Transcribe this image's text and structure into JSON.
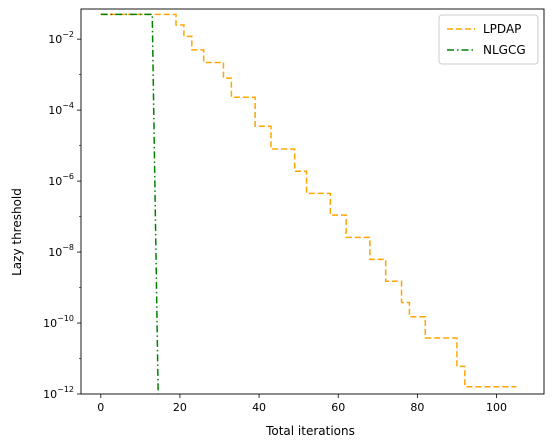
{
  "chart_data": {
    "type": "line",
    "xlabel": "Total iterations",
    "ylabel": "Lazy threshold",
    "xlim": [
      -5,
      112
    ],
    "ylim_exp": [
      -12,
      -1.15
    ],
    "y_scale": "log",
    "grid": false,
    "legend_position": "top-right",
    "x_ticks": [
      {
        "value": 0,
        "label": "0"
      },
      {
        "value": 20,
        "label": "20"
      },
      {
        "value": 40,
        "label": "40"
      },
      {
        "value": 60,
        "label": "60"
      },
      {
        "value": 80,
        "label": "80"
      },
      {
        "value": 100,
        "label": "100"
      }
    ],
    "y_ticks": [
      {
        "exp": -2,
        "base": "10",
        "sup": "−2"
      },
      {
        "exp": -4,
        "base": "10",
        "sup": "−4"
      },
      {
        "exp": -6,
        "base": "10",
        "sup": "−6"
      },
      {
        "exp": -8,
        "base": "10",
        "sup": "−8"
      },
      {
        "exp": -10,
        "base": "10",
        "sup": "−10"
      },
      {
        "exp": -12,
        "base": "10",
        "sup": "−12"
      }
    ],
    "series": [
      {
        "name": "LPDAP",
        "color": "#ffa500",
        "dash": "6,3",
        "step": "post",
        "x": [
          0,
          18,
          19,
          21,
          23,
          26,
          31,
          33,
          39,
          43,
          49,
          52,
          58,
          62,
          68,
          72,
          76,
          78,
          82,
          86,
          90,
          92,
          95,
          100,
          105
        ],
        "y": [
          0.05,
          0.05,
          0.025,
          0.012,
          0.005,
          0.0022,
          0.0008,
          0.00023,
          3.5e-05,
          8e-06,
          1.9e-06,
          4.5e-07,
          1.1e-07,
          2.6e-08,
          6.2e-09,
          1.5e-09,
          3.8e-10,
          1.5e-10,
          3.8e-11,
          3.8e-11,
          6e-12,
          1.6e-12,
          1.6e-12,
          1.6e-12,
          1.6e-12
        ]
      },
      {
        "name": "NLGCG",
        "color": "#008000",
        "dash": "7,3,1.5,3",
        "step": "none",
        "x": [
          0,
          13,
          14.5
        ],
        "y": [
          0.05,
          0.05,
          1e-12
        ]
      }
    ]
  }
}
